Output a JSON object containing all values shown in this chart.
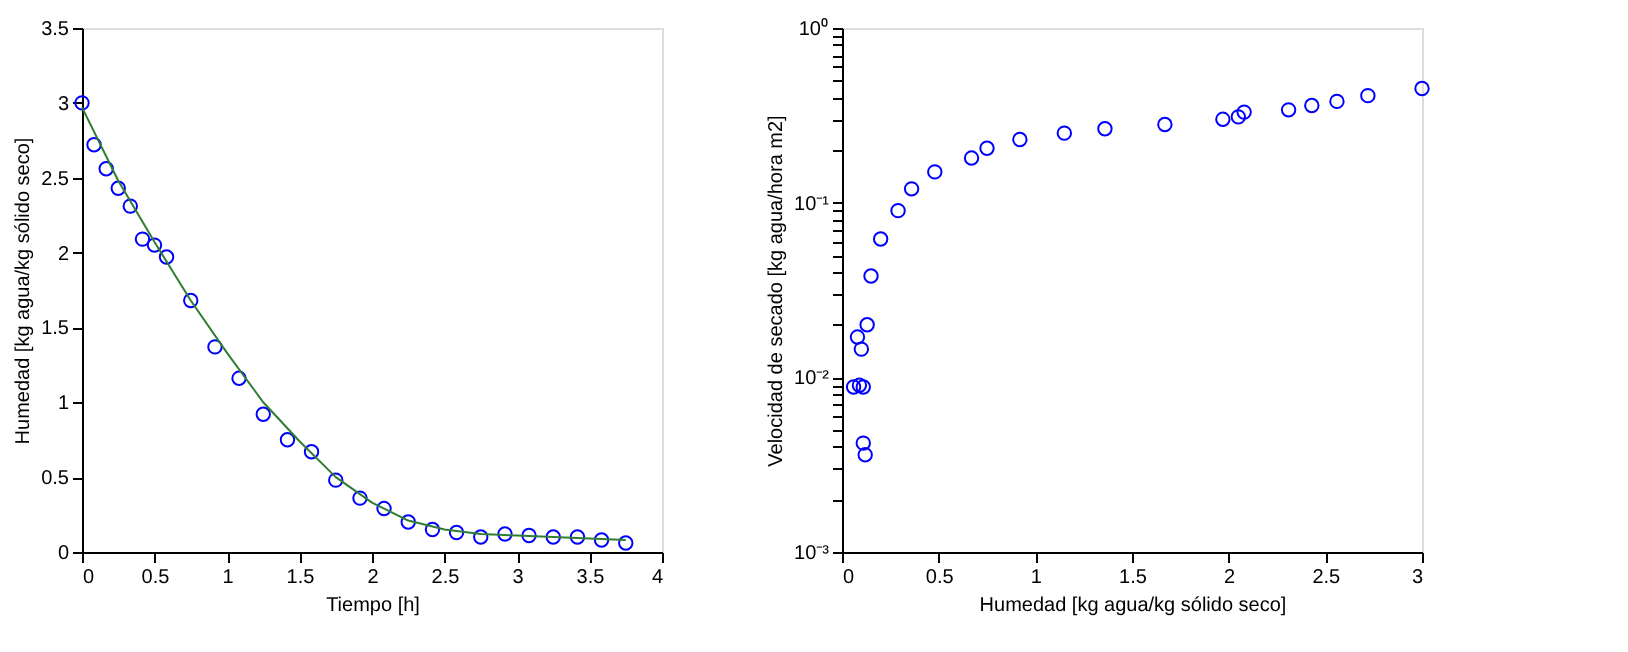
{
  "chart_data": [
    {
      "type": "scatter",
      "xlabel": "Tiempo [h]",
      "ylabel": "Humedad [kg agua/kg sólido seco]",
      "xlim": [
        0,
        4
      ],
      "ylim": [
        0,
        3.5
      ],
      "xticks": [
        0,
        0.5,
        1,
        1.5,
        2,
        2.5,
        3,
        3.5,
        4
      ],
      "yticks": [
        0,
        0.5,
        1,
        1.5,
        2,
        2.5,
        3,
        3.5
      ],
      "grid": false,
      "legend": false,
      "series": [
        {
          "type": "scatter",
          "marker": "circle",
          "color": "#0000ff",
          "x": [
            0,
            0.083,
            0.167,
            0.25,
            0.333,
            0.417,
            0.5,
            0.583,
            0.75,
            0.917,
            1.083,
            1.25,
            1.417,
            1.583,
            1.75,
            1.917,
            2.083,
            2.25,
            2.417,
            2.583,
            2.75,
            2.917,
            3.083,
            3.25,
            3.417,
            3.583,
            3.75
          ],
          "values": [
            3.0,
            2.72,
            2.56,
            2.43,
            2.31,
            2.09,
            2.05,
            1.97,
            1.68,
            1.37,
            1.16,
            0.92,
            0.75,
            0.67,
            0.48,
            0.36,
            0.29,
            0.2,
            0.15,
            0.13,
            0.1,
            0.12,
            0.11,
            0.1,
            0.1,
            0.08,
            0.06
          ]
        },
        {
          "type": "line",
          "marker": "none",
          "line_style": "solid",
          "color": "#2e7d32",
          "x": [
            0,
            0.25,
            0.5,
            0.75,
            1,
            1.25,
            1.5,
            1.75,
            2,
            2.25,
            2.5,
            2.75,
            3,
            3.25,
            3.5,
            3.75
          ],
          "values": [
            2.97,
            2.48,
            2.07,
            1.68,
            1.33,
            1.0,
            0.74,
            0.5,
            0.33,
            0.21,
            0.15,
            0.12,
            0.11,
            0.1,
            0.09,
            0.08
          ]
        }
      ]
    },
    {
      "type": "scatter",
      "xlabel": "Humedad [kg agua/kg sólido seco]",
      "ylabel": "Velocidad de secado [kg agua/hora m2]",
      "log": "y",
      "xlim": [
        0,
        3
      ],
      "ylim": [
        0.001,
        1
      ],
      "xticks": [
        0,
        0.5,
        1,
        1.5,
        2,
        2.5,
        3
      ],
      "yticks": [
        {
          "value": 0.001,
          "label": "10⁻³"
        },
        {
          "value": 0.002,
          "label": null
        },
        {
          "value": 0.003,
          "label": null
        },
        {
          "value": 0.004,
          "label": null
        },
        {
          "value": 0.005,
          "label": null
        },
        {
          "value": 0.006,
          "label": null
        },
        {
          "value": 0.007,
          "label": null
        },
        {
          "value": 0.008,
          "label": null
        },
        {
          "value": 0.009,
          "label": null
        },
        {
          "value": 0.01,
          "label": "10⁻²"
        },
        {
          "value": 0.02,
          "label": null
        },
        {
          "value": 0.03,
          "label": null
        },
        {
          "value": 0.04,
          "label": null
        },
        {
          "value": 0.05,
          "label": null
        },
        {
          "value": 0.06,
          "label": null
        },
        {
          "value": 0.07,
          "label": null
        },
        {
          "value": 0.08,
          "label": null
        },
        {
          "value": 0.09,
          "label": null
        },
        {
          "value": 0.1,
          "label": "10⁻¹"
        },
        {
          "value": 0.2,
          "label": null
        },
        {
          "value": 0.3,
          "label": null
        },
        {
          "value": 0.4,
          "label": null
        },
        {
          "value": 0.5,
          "label": null
        },
        {
          "value": 0.6,
          "label": null
        },
        {
          "value": 0.7,
          "label": null
        },
        {
          "value": 0.8,
          "label": null
        },
        {
          "value": 0.9,
          "label": null
        },
        {
          "value": 1,
          "label": "10⁰"
        }
      ],
      "grid": false,
      "legend": false,
      "series": [
        {
          "type": "scatter",
          "marker": "circle",
          "color": "#0000ff",
          "x": [
            3.0,
            2.72,
            2.56,
            2.43,
            2.31,
            2.08,
            2.05,
            1.97,
            1.67,
            1.36,
            1.15,
            0.92,
            0.75,
            0.67,
            0.48,
            0.36,
            0.29,
            0.2,
            0.15,
            0.13,
            0.1,
            0.08,
            0.06,
            0.11,
            0.09,
            0.11,
            0.12
          ],
          "values": [
            0.45,
            0.41,
            0.38,
            0.36,
            0.34,
            0.33,
            0.31,
            0.3,
            0.28,
            0.265,
            0.25,
            0.23,
            0.205,
            0.18,
            0.15,
            0.12,
            0.09,
            0.062,
            0.038,
            0.02,
            0.0145,
            0.017,
            0.0088,
            0.0088,
            0.009,
            0.0042,
            0.0036
          ]
        }
      ]
    }
  ]
}
